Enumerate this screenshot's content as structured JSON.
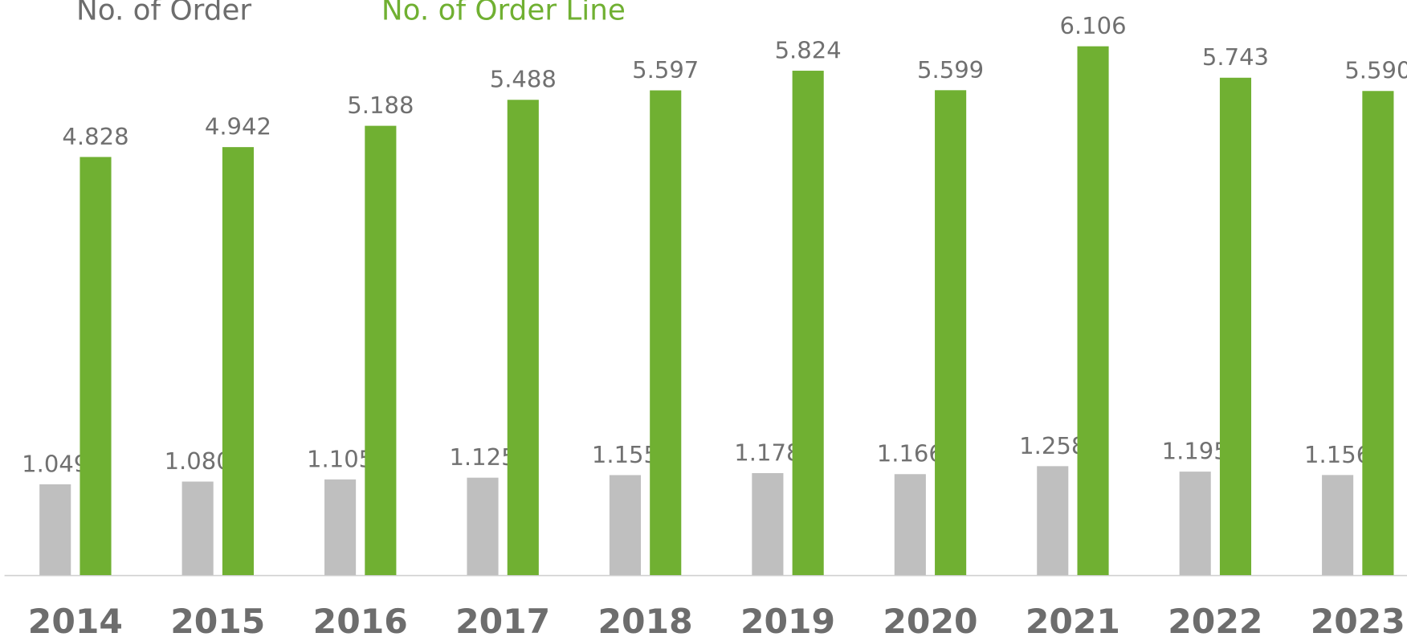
{
  "chart_data": {
    "type": "bar",
    "categories": [
      "2014",
      "2015",
      "2016",
      "2017",
      "2018",
      "2019",
      "2020",
      "2021",
      "2022",
      "2023"
    ],
    "series": [
      {
        "name": "No. of Order",
        "color": "#bfbfbf",
        "values": [
          1049,
          1080,
          1105,
          1125,
          1155,
          1178,
          1166,
          1258,
          1195,
          1156
        ],
        "value_labels": [
          "1.049",
          "1.080",
          "1.105",
          "1.125",
          "1.155",
          "1.178",
          "1.166",
          "1.258",
          "1.195",
          "1.156"
        ]
      },
      {
        "name": "No. of Order Line",
        "color": "#70b032",
        "values": [
          4828,
          4942,
          5188,
          5488,
          5597,
          5824,
          5599,
          6106,
          5743,
          5590
        ],
        "value_labels": [
          "4.828",
          "4.942",
          "5.188",
          "5.488",
          "5.597",
          "5.824",
          "5.599",
          "6.106",
          "5.743",
          "5.590"
        ]
      }
    ]
  }
}
